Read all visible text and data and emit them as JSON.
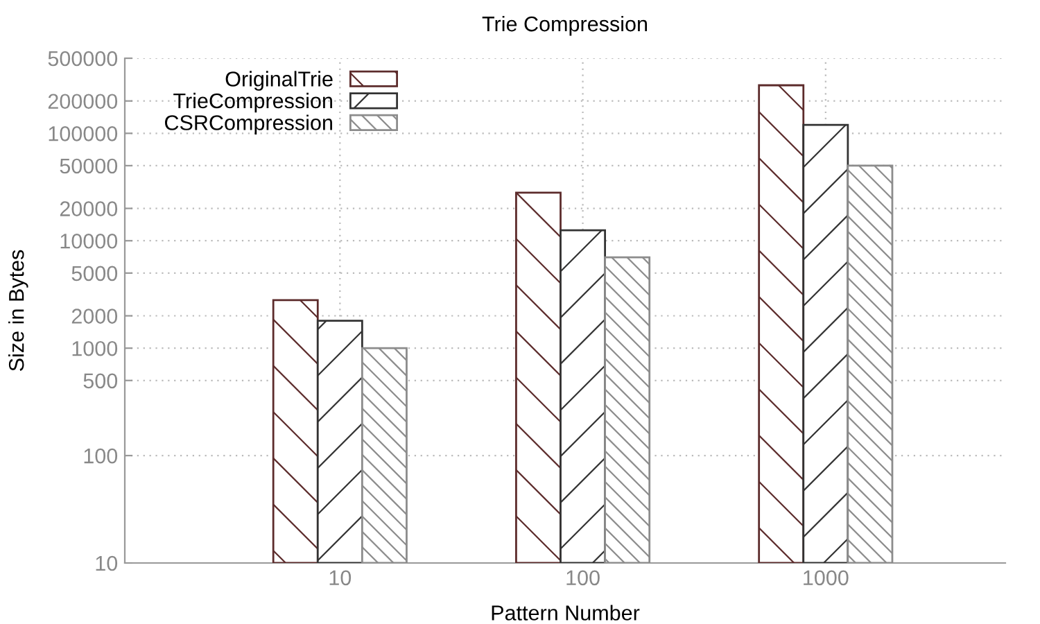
{
  "chart_data": {
    "type": "bar",
    "title": "Trie Compression",
    "xlabel": "Pattern Number",
    "ylabel": "Size in Bytes",
    "categories": [
      "10",
      "100",
      "1000"
    ],
    "series": [
      {
        "name": "OriginalTrie",
        "color": "#5c2b2b",
        "values": [
          2800,
          28000,
          280000
        ]
      },
      {
        "name": "TrieCompression",
        "color": "#333333",
        "values": [
          1800,
          12500,
          120000
        ]
      },
      {
        "name": "CSRCompression",
        "color": "#8c8c8c",
        "values": [
          1000,
          7000,
          50000
        ]
      }
    ],
    "log": "y",
    "ylim": [
      10,
      500000
    ],
    "yticks": [
      10,
      100,
      500,
      1000,
      2000,
      5000,
      10000,
      20000,
      50000,
      100000,
      200000,
      500000
    ],
    "grid": true,
    "legend": "top left"
  }
}
